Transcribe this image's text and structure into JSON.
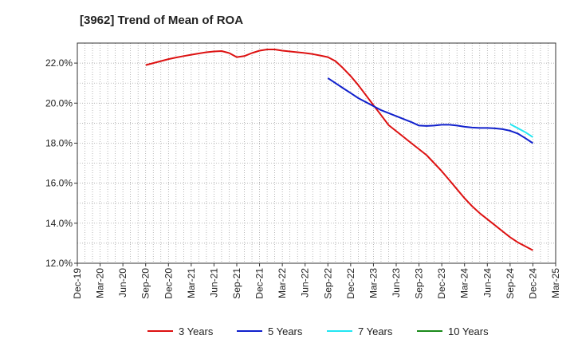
{
  "chart_data": {
    "type": "line",
    "title": "[3962]  Trend of Mean of ROA",
    "xlabel": "",
    "ylabel": "",
    "x_ticks": [
      "Dec-19",
      "Mar-20",
      "Jun-20",
      "Sep-20",
      "Dec-20",
      "Mar-21",
      "Jun-21",
      "Sep-21",
      "Dec-21",
      "Mar-22",
      "Jun-22",
      "Sep-22",
      "Dec-22",
      "Mar-23",
      "Jun-23",
      "Sep-23",
      "Dec-23",
      "Mar-24",
      "Jun-24",
      "Sep-24",
      "Dec-24",
      "Mar-25"
    ],
    "y_ticks": [
      "12.0%",
      "14.0%",
      "16.0%",
      "18.0%",
      "20.0%",
      "22.0%"
    ],
    "ylim": [
      12.0,
      23.0
    ],
    "grid": true,
    "legend_position": "bottom",
    "series": [
      {
        "name": "3 Years",
        "color": "#dd1111",
        "x": [
          "Sep-20",
          "Oct-20",
          "Nov-20",
          "Dec-20",
          "Jan-21",
          "Feb-21",
          "Mar-21",
          "Apr-21",
          "May-21",
          "Jun-21",
          "Jul-21",
          "Aug-21",
          "Sep-21",
          "Oct-21",
          "Nov-21",
          "Dec-21",
          "Jan-22",
          "Feb-22",
          "Mar-22",
          "Apr-22",
          "May-22",
          "Jun-22",
          "Jul-22",
          "Aug-22",
          "Sep-22",
          "Oct-22",
          "Nov-22",
          "Dec-22",
          "Jan-23",
          "Feb-23",
          "Mar-23",
          "Apr-23",
          "May-23",
          "Jun-23",
          "Jul-23",
          "Aug-23",
          "Sep-23",
          "Oct-23",
          "Nov-23",
          "Dec-23",
          "Jan-24",
          "Feb-24",
          "Mar-24",
          "Apr-24",
          "May-24",
          "Jun-24",
          "Jul-24",
          "Aug-24",
          "Sep-24",
          "Oct-24",
          "Nov-24",
          "Dec-24"
        ],
        "values": [
          21.9,
          22.0,
          22.1,
          22.2,
          22.28,
          22.35,
          22.42,
          22.48,
          22.54,
          22.58,
          22.6,
          22.5,
          22.3,
          22.35,
          22.5,
          22.62,
          22.68,
          22.68,
          22.62,
          22.58,
          22.54,
          22.5,
          22.45,
          22.38,
          22.3,
          22.1,
          21.75,
          21.35,
          20.9,
          20.4,
          19.9,
          19.4,
          18.9,
          18.6,
          18.3,
          18.0,
          17.7,
          17.4,
          17.0,
          16.6,
          16.15,
          15.7,
          15.25,
          14.85,
          14.5,
          14.2,
          13.9,
          13.6,
          13.3,
          13.05,
          12.85,
          12.65
        ]
      },
      {
        "name": "5 Years",
        "color": "#1020cc",
        "x": [
          "Sep-22",
          "Oct-22",
          "Nov-22",
          "Dec-22",
          "Jan-23",
          "Feb-23",
          "Mar-23",
          "Apr-23",
          "May-23",
          "Jun-23",
          "Jul-23",
          "Aug-23",
          "Sep-23",
          "Oct-23",
          "Nov-23",
          "Dec-23",
          "Jan-24",
          "Feb-24",
          "Mar-24",
          "Apr-24",
          "May-24",
          "Jun-24",
          "Jul-24",
          "Aug-24",
          "Sep-24",
          "Oct-24",
          "Nov-24",
          "Dec-24"
        ],
        "values": [
          21.25,
          21.0,
          20.75,
          20.5,
          20.25,
          20.05,
          19.85,
          19.65,
          19.5,
          19.35,
          19.2,
          19.05,
          18.88,
          18.86,
          18.88,
          18.92,
          18.92,
          18.88,
          18.82,
          18.78,
          18.76,
          18.76,
          18.74,
          18.7,
          18.62,
          18.48,
          18.25,
          18.0
        ]
      },
      {
        "name": "7 Years",
        "color": "#22e6f2",
        "x": [
          "Sep-24",
          "Oct-24",
          "Nov-24",
          "Dec-24"
        ],
        "values": [
          18.95,
          18.75,
          18.55,
          18.3
        ]
      },
      {
        "name": "10 Years",
        "color": "#1a8a1a",
        "x": [],
        "values": []
      }
    ]
  }
}
